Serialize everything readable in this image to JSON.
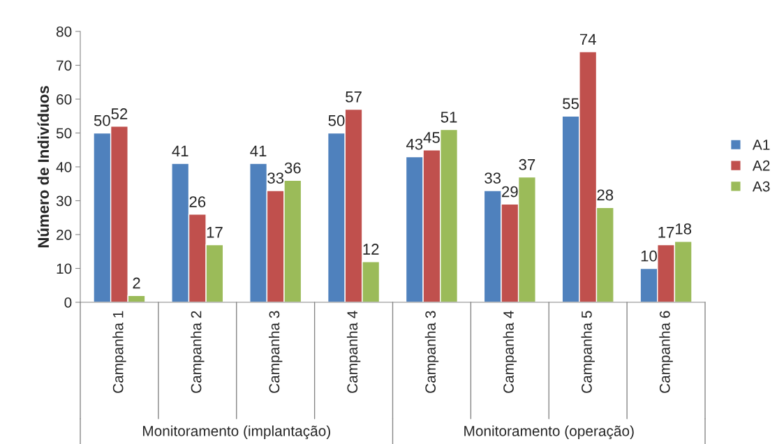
{
  "chart_data": {
    "type": "bar",
    "ylabel": "Número de Indivíduos",
    "categories": [
      "Campanha 1",
      "Campanha 2",
      "Campanha 3",
      "Campanha 4",
      "Campanha 3",
      "Campanha 4",
      "Campanha 5",
      "Campanha 6"
    ],
    "series": [
      {
        "name": "A1",
        "color": "#4f81bd",
        "values": [
          50,
          41,
          41,
          50,
          43,
          33,
          55,
          10
        ]
      },
      {
        "name": "A2",
        "color": "#c0504d",
        "values": [
          52,
          26,
          33,
          57,
          45,
          29,
          74,
          17
        ]
      },
      {
        "name": "A3",
        "color": "#9bbb59",
        "values": [
          2,
          17,
          36,
          12,
          51,
          37,
          28,
          18
        ]
      }
    ],
    "ylim": [
      0,
      80
    ],
    "yticks": [
      0,
      10,
      20,
      30,
      40,
      50,
      60,
      70,
      80
    ],
    "data_labels": true,
    "grid": false,
    "legend": "right",
    "annotations": [
      "Monitoramento (implantação)",
      "Monitoramento (operação)"
    ]
  }
}
